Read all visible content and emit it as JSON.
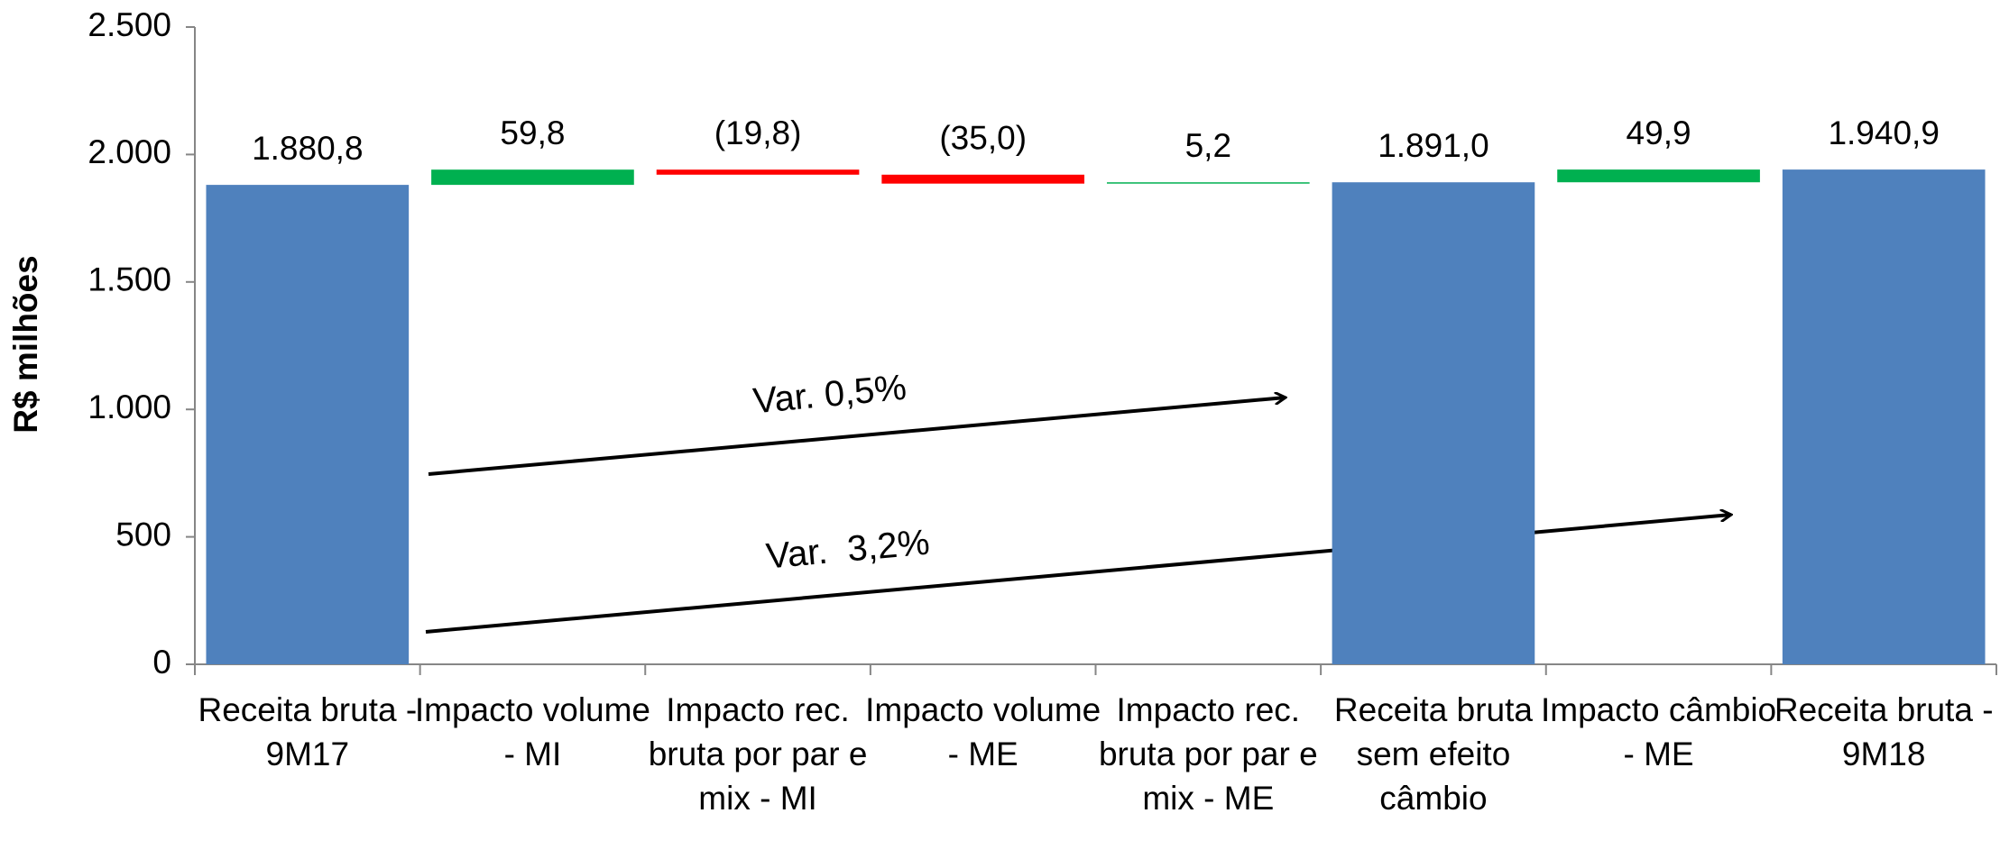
{
  "chart_data": {
    "type": "waterfall",
    "y_label": "R$ milhões",
    "categories": [
      "Receita bruta - 9M17",
      "Impacto volume - MI",
      "Impacto rec. bruta por par e mix - MI",
      "Impacto volume - ME",
      "Impacto rec. bruta por par e mix - ME",
      "Receita bruta sem efeito câmbio",
      "Impacto câmbio - ME",
      "Receita bruta - 9M18"
    ],
    "values": [
      1880.8,
      59.8,
      -19.8,
      -35.0,
      5.2,
      1891.0,
      49.9,
      1940.9
    ],
    "value_labels": [
      "1.880,8",
      "59,8",
      "(19,8)",
      "(35,0)",
      "5,2",
      "1.891,0",
      "49,9",
      "1.940,9"
    ],
    "measures": [
      "total",
      "relative",
      "relative",
      "relative",
      "relative",
      "total",
      "relative",
      "total"
    ],
    "colors": {
      "total": "#4f81bd",
      "increase": "#00b050",
      "decrease": "#ff0000"
    },
    "ylim": [
      0,
      2500
    ],
    "yticks": [
      0,
      500,
      {
        "value": 1000,
        "label": "1.000"
      },
      {
        "value": 1500,
        "label": "1.500"
      },
      {
        "value": 2000,
        "label": "2.000"
      },
      {
        "value": 2500,
        "label": "2.500"
      }
    ],
    "annotations": [
      "Var. 0,5%",
      "Var.  3,2%"
    ]
  }
}
